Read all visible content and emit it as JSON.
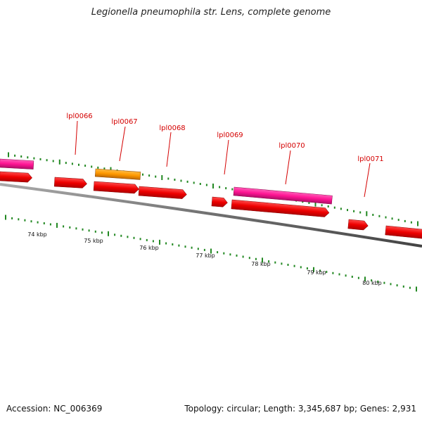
{
  "header": {
    "title": "Legionella pneumophila str. Lens, complete genome"
  },
  "footer": {
    "accession": "Accession: NC_006369",
    "summary": "Topology: circular; Length: 3,345,687 bp; Genes: 2,931"
  },
  "colors": {
    "label": "#d40000",
    "cds": "#ff0000",
    "pink_feature": "#ff1493",
    "orange_feature": "#ff9900",
    "backbone": "#777777",
    "ticks": "#228822"
  },
  "gene_labels": [
    "lpl0066",
    "lpl0067",
    "lpl0068",
    "lpl0069",
    "lpl0070",
    "lpl0071"
  ],
  "scale_labels": [
    "74 kbp",
    "75 kbp",
    "76 kbp",
    "77 kbp",
    "78 kbp",
    "79 kbp",
    "80 kbp"
  ]
}
